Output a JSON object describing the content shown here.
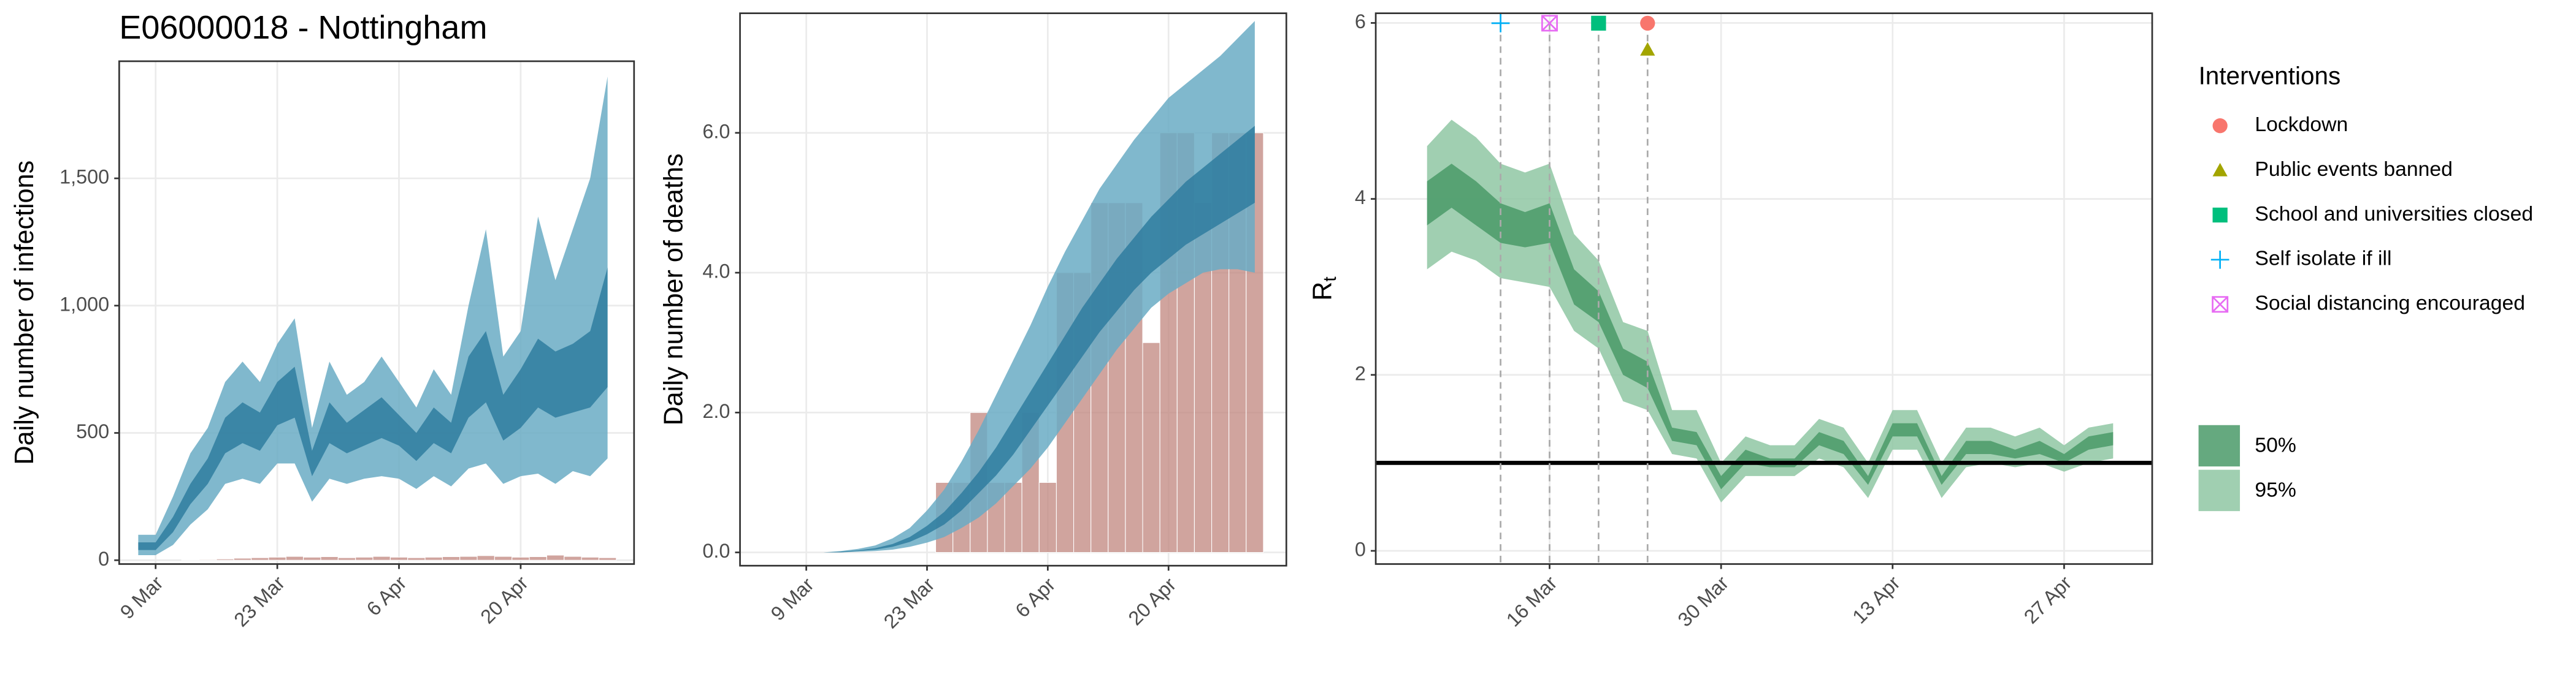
{
  "chart_data": [
    {
      "type": "band",
      "title": "E06000018 - Nottingham",
      "ylabel": "Daily number of infections",
      "x": [
        "7 Mar",
        "9 Mar",
        "11 Mar",
        "13 Mar",
        "15 Mar",
        "17 Mar",
        "19 Mar",
        "21 Mar",
        "23 Mar",
        "25 Mar",
        "27 Mar",
        "29 Mar",
        "31 Mar",
        "2 Apr",
        "4 Apr",
        "6 Apr",
        "8 Apr",
        "10 Apr",
        "12 Apr",
        "14 Apr",
        "16 Apr",
        "18 Apr",
        "20 Apr",
        "22 Apr",
        "24 Apr",
        "26 Apr",
        "28 Apr",
        "30 Apr"
      ],
      "xticks": [
        "9 Mar",
        "23 Mar",
        "6 Apr",
        "20 Apr"
      ],
      "ylim": [
        -15,
        1960
      ],
      "yticks": [
        0,
        500,
        {
          "value": 1000,
          "label": "1,000"
        },
        {
          "value": 1500,
          "label": "1,500"
        }
      ],
      "grid": true,
      "bars": {
        "color": "#c0857e",
        "values": [
          0,
          0,
          0,
          2,
          3,
          5,
          8,
          10,
          12,
          15,
          12,
          14,
          10,
          12,
          15,
          12,
          10,
          12,
          14,
          15,
          18,
          15,
          12,
          14,
          20,
          15,
          12,
          10
        ]
      },
      "series": [
        {
          "color": "#6aabc4",
          "lower": [
            20,
            20,
            60,
            140,
            200,
            300,
            320,
            300,
            380,
            380,
            230,
            320,
            300,
            320,
            330,
            320,
            280,
            330,
            290,
            360,
            380,
            300,
            330,
            340,
            300,
            350,
            330,
            400
          ],
          "upper": [
            100,
            100,
            250,
            420,
            520,
            700,
            780,
            700,
            850,
            950,
            520,
            780,
            650,
            700,
            800,
            700,
            600,
            750,
            650,
            1000,
            1300,
            800,
            900,
            1350,
            1100,
            1300,
            1500,
            1900
          ]
        },
        {
          "color": "#2f7c9f",
          "lower": [
            40,
            40,
            110,
            220,
            300,
            420,
            460,
            430,
            530,
            560,
            330,
            460,
            420,
            450,
            480,
            450,
            390,
            460,
            420,
            560,
            620,
            470,
            520,
            600,
            560,
            580,
            600,
            680
          ],
          "upper": [
            70,
            70,
            170,
            300,
            400,
            560,
            620,
            580,
            700,
            760,
            430,
            620,
            540,
            590,
            640,
            570,
            500,
            600,
            540,
            800,
            900,
            650,
            750,
            870,
            820,
            850,
            900,
            1150
          ]
        }
      ]
    },
    {
      "type": "band",
      "ylabel": "Daily number of deaths",
      "x": [
        "7 Mar",
        "9 Mar",
        "11 Mar",
        "13 Mar",
        "15 Mar",
        "17 Mar",
        "19 Mar",
        "21 Mar",
        "23 Mar",
        "25 Mar",
        "27 Mar",
        "29 Mar",
        "31 Mar",
        "2 Apr",
        "4 Apr",
        "6 Apr",
        "8 Apr",
        "10 Apr",
        "12 Apr",
        "14 Apr",
        "16 Apr",
        "18 Apr",
        "20 Apr",
        "22 Apr",
        "24 Apr",
        "26 Apr",
        "28 Apr",
        "30 Apr"
      ],
      "xticks": [
        "9 Mar",
        "23 Mar",
        "6 Apr",
        "20 Apr"
      ],
      "ylim": [
        -0.19,
        7.71
      ],
      "yticks": [
        {
          "value": 0,
          "label": "0.0"
        },
        {
          "value": 2,
          "label": "2.0"
        },
        {
          "value": 4,
          "label": "4.0"
        },
        {
          "value": 6,
          "label": "6.0"
        }
      ],
      "grid": true,
      "bars": {
        "color": "#c0857e",
        "values": [
          0,
          0,
          0,
          0,
          0,
          0,
          0,
          0,
          0,
          1,
          1,
          2,
          1,
          1,
          2,
          1,
          4,
          4,
          5,
          5,
          5,
          3,
          6,
          6,
          5,
          6,
          6,
          6
        ]
      },
      "series": [
        {
          "color": "#6aabc4",
          "lower": [
            0,
            0,
            0,
            0,
            0.01,
            0.02,
            0.04,
            0.08,
            0.14,
            0.22,
            0.35,
            0.5,
            0.7,
            0.95,
            1.2,
            1.5,
            1.85,
            2.2,
            2.55,
            2.9,
            3.2,
            3.5,
            3.7,
            3.85,
            4.0,
            4.05,
            4.05,
            4.0
          ],
          "upper": [
            0,
            0,
            0,
            0.02,
            0.05,
            0.1,
            0.2,
            0.35,
            0.6,
            0.9,
            1.3,
            1.75,
            2.25,
            2.75,
            3.25,
            3.8,
            4.3,
            4.75,
            5.2,
            5.55,
            5.9,
            6.2,
            6.5,
            6.7,
            6.9,
            7.1,
            7.35,
            7.6
          ]
        },
        {
          "color": "#2f7c9f",
          "lower": [
            0,
            0,
            0,
            0,
            0.02,
            0.04,
            0.08,
            0.15,
            0.26,
            0.4,
            0.6,
            0.85,
            1.1,
            1.4,
            1.75,
            2.1,
            2.45,
            2.8,
            3.15,
            3.45,
            3.75,
            4.0,
            4.2,
            4.4,
            4.55,
            4.7,
            4.85,
            5.0
          ],
          "upper": [
            0,
            0,
            0,
            0.01,
            0.03,
            0.06,
            0.12,
            0.22,
            0.38,
            0.58,
            0.85,
            1.15,
            1.5,
            1.9,
            2.3,
            2.7,
            3.1,
            3.5,
            3.85,
            4.2,
            4.5,
            4.8,
            5.05,
            5.3,
            5.5,
            5.7,
            5.9,
            6.1
          ]
        }
      ]
    },
    {
      "type": "band",
      "ylabel": "R",
      "ylabel_sub": "t",
      "x": [
        "6 Mar",
        "8 Mar",
        "10 Mar",
        "12 Mar",
        "14 Mar",
        "16 Mar",
        "18 Mar",
        "20 Mar",
        "22 Mar",
        "24 Mar",
        "26 Mar",
        "28 Mar",
        "30 Mar",
        "1 Apr",
        "3 Apr",
        "5 Apr",
        "7 Apr",
        "9 Apr",
        "11 Apr",
        "13 Apr",
        "15 Apr",
        "17 Apr",
        "19 Apr",
        "21 Apr",
        "23 Apr",
        "25 Apr",
        "27 Apr",
        "29 Apr",
        "1 May"
      ],
      "xticks": [
        "16 Mar",
        "30 Mar",
        "13 Apr",
        "27 Apr"
      ],
      "ylim": [
        -0.15,
        6.11
      ],
      "yticks": [
        0,
        2,
        4,
        6
      ],
      "grid": true,
      "hline": 1,
      "series": [
        {
          "name": "95%",
          "color": "#8fc7a3",
          "lower": [
            3.2,
            3.4,
            3.3,
            3.1,
            3.05,
            3.0,
            2.5,
            2.3,
            1.7,
            1.6,
            1.1,
            1.05,
            0.55,
            0.85,
            0.85,
            0.85,
            1.05,
            0.95,
            0.6,
            1.15,
            1.15,
            0.6,
            0.95,
            1.0,
            0.95,
            1.0,
            0.9,
            1.0,
            1.05
          ],
          "upper": [
            4.6,
            4.9,
            4.7,
            4.4,
            4.3,
            4.4,
            3.6,
            3.3,
            2.6,
            2.5,
            1.6,
            1.6,
            1.0,
            1.3,
            1.2,
            1.2,
            1.5,
            1.4,
            1.0,
            1.6,
            1.6,
            1.0,
            1.4,
            1.4,
            1.3,
            1.4,
            1.2,
            1.4,
            1.45
          ]
        },
        {
          "name": "50%",
          "color": "#4a9a68",
          "lower": [
            3.7,
            3.9,
            3.7,
            3.5,
            3.45,
            3.5,
            2.8,
            2.6,
            2.0,
            1.85,
            1.25,
            1.2,
            0.7,
            1.0,
            0.95,
            0.95,
            1.2,
            1.1,
            0.75,
            1.3,
            1.3,
            0.75,
            1.1,
            1.1,
            1.05,
            1.1,
            1.0,
            1.15,
            1.2
          ],
          "upper": [
            4.2,
            4.4,
            4.2,
            3.95,
            3.85,
            3.95,
            3.2,
            2.95,
            2.3,
            2.15,
            1.4,
            1.35,
            0.85,
            1.15,
            1.05,
            1.05,
            1.35,
            1.25,
            0.85,
            1.45,
            1.45,
            0.85,
            1.25,
            1.25,
            1.15,
            1.25,
            1.1,
            1.3,
            1.35
          ]
        }
      ],
      "legend_title": "Interventions",
      "interventions": [
        {
          "name": "Lockdown",
          "date": "24 Mar",
          "color": "#f8766d",
          "shape": "circle"
        },
        {
          "name": "Public events banned",
          "date": "24 Mar",
          "color": "#a3a500",
          "shape": "triangle"
        },
        {
          "name": "School and universities closed",
          "date": "20 Mar",
          "color": "#00bf7d",
          "shape": "square"
        },
        {
          "name": "Self isolate if ill",
          "date": "12 Mar",
          "color": "#00b0f6",
          "shape": "plus"
        },
        {
          "name": "Social distancing encouraged",
          "date": "16 Mar",
          "color": "#e76bf3",
          "shape": "boxx"
        }
      ]
    }
  ]
}
